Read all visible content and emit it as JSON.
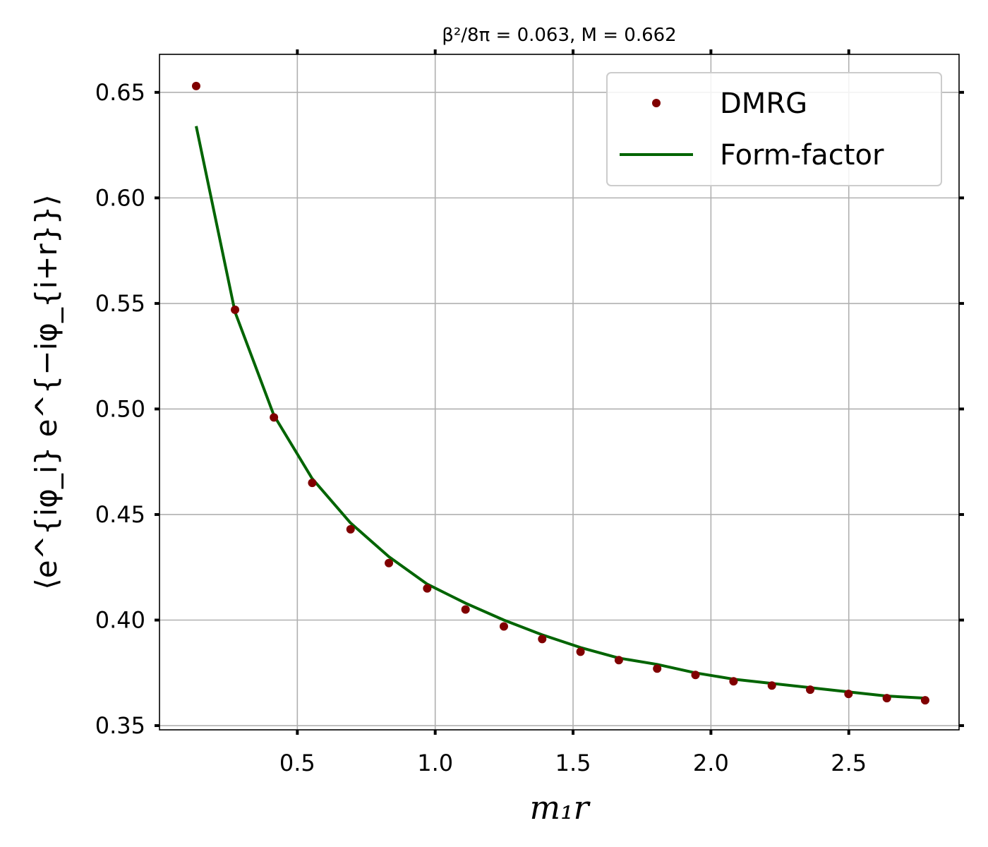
{
  "chart_data": {
    "type": "scatter",
    "title": "β²/8π = 0.063, M = 0.662",
    "xlabel": "m₁r",
    "ylabel": "⟨e^{iφ_i} e^{−iφ_{i+r}}⟩",
    "xlim": [
      0.0,
      2.9
    ],
    "ylim": [
      0.348,
      0.668
    ],
    "x_ticks": [
      0.5,
      1.0,
      1.5,
      2.0,
      2.5
    ],
    "x_tick_labels": [
      "0.5",
      "1.0",
      "1.5",
      "2.0",
      "2.5"
    ],
    "y_ticks": [
      0.35,
      0.4,
      0.45,
      0.5,
      0.55,
      0.6,
      0.65
    ],
    "y_tick_labels": [
      "0.35",
      "0.40",
      "0.45",
      "0.50",
      "0.55",
      "0.60",
      "0.65"
    ],
    "grid": true,
    "legend_position": "top-right",
    "series": [
      {
        "name": "DMRG",
        "kind": "markers",
        "color": "#800000",
        "x": [
          0.133,
          0.274,
          0.415,
          0.554,
          0.693,
          0.832,
          0.971,
          1.11,
          1.249,
          1.388,
          1.527,
          1.666,
          1.805,
          1.944,
          2.082,
          2.221,
          2.36,
          2.499,
          2.638,
          2.777
        ],
        "y": [
          0.653,
          0.547,
          0.496,
          0.465,
          0.443,
          0.427,
          0.415,
          0.405,
          0.397,
          0.391,
          0.385,
          0.381,
          0.377,
          0.374,
          0.371,
          0.369,
          0.367,
          0.365,
          0.363,
          0.362
        ]
      },
      {
        "name": "Form-factor",
        "kind": "line",
        "color": "#006400",
        "x": [
          0.133,
          0.274,
          0.415,
          0.554,
          0.693,
          0.832,
          0.971,
          1.11,
          1.249,
          1.388,
          1.527,
          1.666,
          1.805,
          1.944,
          2.082,
          2.221,
          2.36,
          2.499,
          2.638,
          2.777
        ],
        "y": [
          0.634,
          0.546,
          0.497,
          0.467,
          0.446,
          0.43,
          0.417,
          0.408,
          0.4,
          0.393,
          0.387,
          0.382,
          0.379,
          0.375,
          0.372,
          0.37,
          0.368,
          0.366,
          0.364,
          0.363
        ]
      }
    ]
  }
}
